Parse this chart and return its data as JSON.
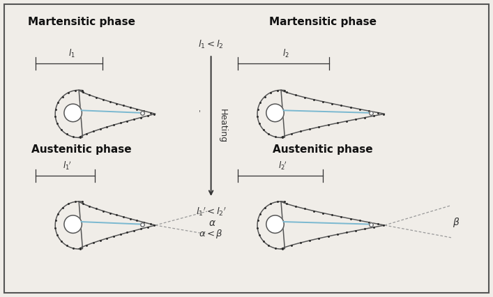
{
  "bg_color": "#f0ede8",
  "border_color": "#555555",
  "fish_color": "#555555",
  "blue_line_color": "#7ab8d0",
  "dashed_color": "#888888",
  "label_tl": "Martensitic phase",
  "label_tr": "Martensitic phase",
  "label_bl": "Austenitic phase",
  "label_br": "Austenitic phase",
  "center_top_label": "$l_1 < l_2$",
  "center_bottom_label": "$l_1{}'< l_2{}'$",
  "center_side_label": "Heating",
  "alpha_label": "$\\alpha$",
  "beta_label": "$\\beta$",
  "ab_compare": "$\\alpha < \\beta$",
  "ruler_l1": "$l_1$",
  "ruler_l2": "$l_2$",
  "ruler_l1p": "$l_1{}'$",
  "ruler_l2p": "$l_2{}'$"
}
